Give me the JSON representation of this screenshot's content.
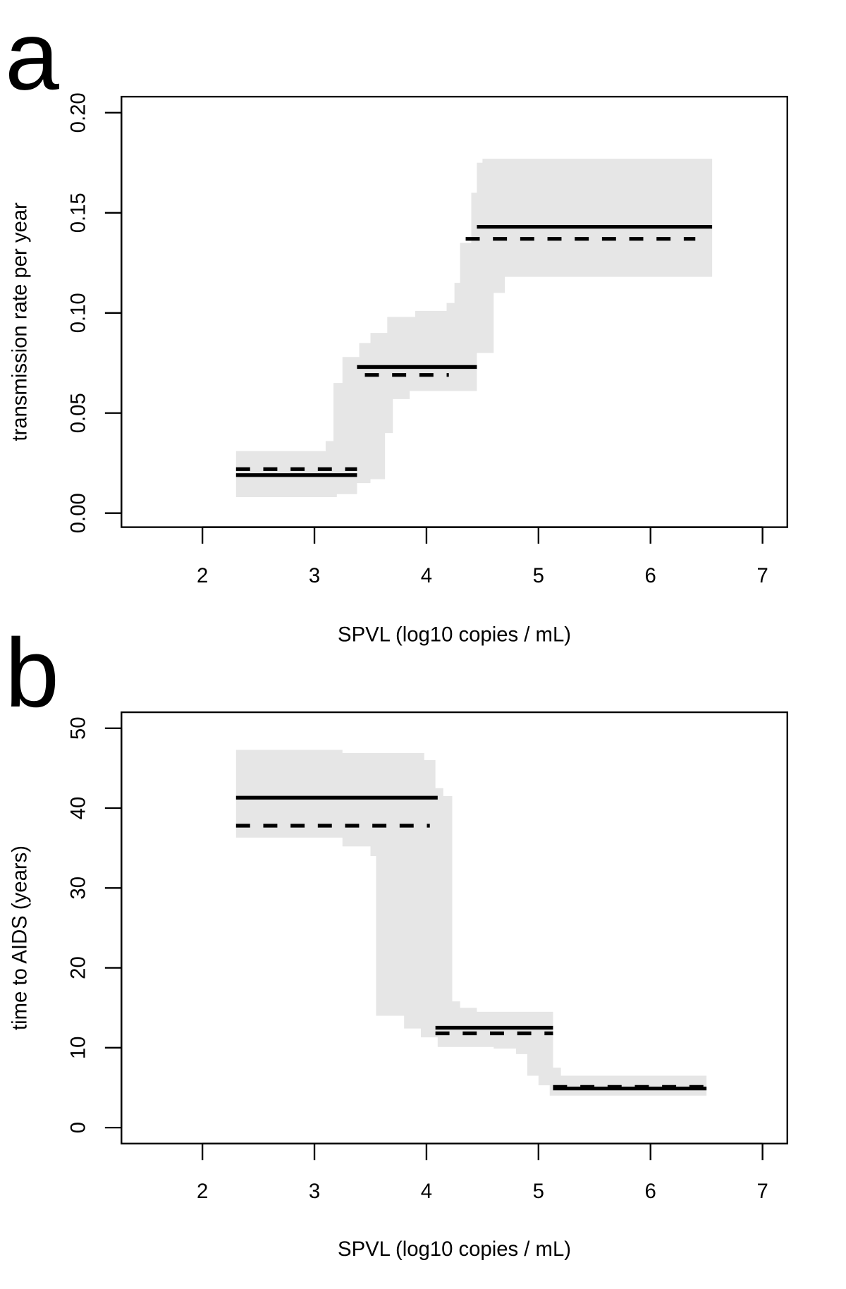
{
  "chart_data": [
    {
      "panel_label": "a",
      "type": "line",
      "xlabel": "SPVL (log10 copies / mL)",
      "ylabel": "transmission rate per year",
      "xlim": [
        1.3,
        7.2
      ],
      "ylim": [
        -0.007,
        0.208
      ],
      "xticks": [
        "2",
        "3",
        "4",
        "5",
        "6",
        "7"
      ],
      "yticks": [
        "0.00",
        "0.05",
        "0.10",
        "0.15",
        "0.20"
      ],
      "band_color": "#e6e6e6",
      "band": {
        "upper": [
          [
            2.3,
            0.031
          ],
          [
            3.1,
            0.036
          ],
          [
            3.17,
            0.065
          ],
          [
            3.25,
            0.078
          ],
          [
            3.4,
            0.085
          ],
          [
            3.5,
            0.09
          ],
          [
            3.65,
            0.098
          ],
          [
            3.9,
            0.101
          ],
          [
            4.18,
            0.105
          ],
          [
            4.25,
            0.115
          ],
          [
            4.3,
            0.135
          ],
          [
            4.4,
            0.16
          ],
          [
            4.45,
            0.175
          ],
          [
            4.5,
            0.177
          ],
          [
            6.55,
            0.177
          ]
        ],
        "lower": [
          [
            2.3,
            0.008
          ],
          [
            3.2,
            0.0095
          ],
          [
            3.38,
            0.015
          ],
          [
            3.5,
            0.017
          ],
          [
            3.63,
            0.04
          ],
          [
            3.7,
            0.057
          ],
          [
            3.85,
            0.061
          ],
          [
            4.45,
            0.08
          ],
          [
            4.6,
            0.11
          ],
          [
            4.7,
            0.118
          ],
          [
            6.55,
            0.118
          ]
        ]
      },
      "series": [
        {
          "style": "solid",
          "segments": [
            [
              2.3,
              3.38,
              0.019
            ],
            [
              3.38,
              4.45,
              0.073
            ],
            [
              4.45,
              6.55,
              0.143
            ]
          ]
        },
        {
          "style": "dashed",
          "segments": [
            [
              2.3,
              3.38,
              0.022
            ],
            [
              3.45,
              4.2,
              0.069
            ],
            [
              4.35,
              6.4,
              0.137
            ]
          ]
        }
      ]
    },
    {
      "panel_label": "b",
      "type": "line",
      "xlabel": "SPVL (log10 copies / mL)",
      "ylabel": "time to AIDS (years)",
      "xlim": [
        1.3,
        7.2
      ],
      "ylim": [
        -2,
        52
      ],
      "xticks": [
        "2",
        "3",
        "4",
        "5",
        "6",
        "7"
      ],
      "yticks": [
        "0",
        "10",
        "20",
        "30",
        "40",
        "50"
      ],
      "band_color": "#e6e6e6",
      "band": {
        "upper": [
          [
            2.3,
            47.3
          ],
          [
            3.25,
            46.9
          ],
          [
            3.98,
            46.0
          ],
          [
            4.08,
            42.5
          ],
          [
            4.15,
            41.5
          ],
          [
            4.23,
            15.8
          ],
          [
            4.3,
            15.0
          ],
          [
            4.45,
            14.5
          ],
          [
            5.13,
            7.5
          ],
          [
            5.2,
            6.5
          ],
          [
            6.5,
            6.5
          ]
        ],
        "lower": [
          [
            2.3,
            36.3
          ],
          [
            3.25,
            35.2
          ],
          [
            3.5,
            34.0
          ],
          [
            3.55,
            14.0
          ],
          [
            3.8,
            12.4
          ],
          [
            3.95,
            11.3
          ],
          [
            4.1,
            10.1
          ],
          [
            4.6,
            9.9
          ],
          [
            4.8,
            9.2
          ],
          [
            4.9,
            6.5
          ],
          [
            5.0,
            5.3
          ],
          [
            5.1,
            4.0
          ],
          [
            6.5,
            4.0
          ]
        ]
      },
      "series": [
        {
          "style": "solid",
          "segments": [
            [
              2.3,
              4.1,
              41.3
            ],
            [
              4.08,
              5.13,
              12.5
            ],
            [
              5.13,
              6.5,
              4.9
            ]
          ]
        },
        {
          "style": "dashed",
          "segments": [
            [
              2.3,
              4.03,
              37.8
            ],
            [
              4.08,
              5.13,
              11.8
            ],
            [
              5.13,
              6.5,
              5.1
            ]
          ]
        }
      ]
    }
  ]
}
